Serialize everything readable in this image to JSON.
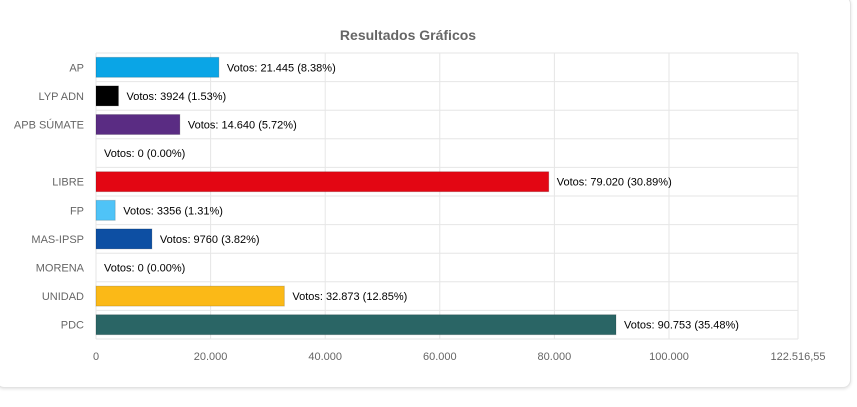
{
  "chart_data": {
    "type": "bar",
    "orientation": "horizontal",
    "title": "Resultados Gráficos",
    "xlabel": "",
    "ylabel": "",
    "xlim": [
      0,
      122516.55
    ],
    "grid": true,
    "categories": [
      "AP",
      "LYP ADN",
      "APB SÚMATE",
      "",
      "LIBRE",
      "FP",
      "MAS-IPSP",
      "MORENA",
      "UNIDAD",
      "PDC"
    ],
    "values": [
      21445,
      3924,
      14640,
      0,
      79020,
      3356,
      9760,
      0,
      32873,
      90753
    ],
    "colors": [
      "#0aa5e6",
      "#000000",
      "#5a2c83",
      "#cccccc",
      "#e30613",
      "#4fc3f7",
      "#0d4fa3",
      "#8b1a1a",
      "#fbb917",
      "#2a6565"
    ],
    "data_labels": [
      "Votos: 21.445 (8.38%)",
      "Votos: 3924 (1.53%)",
      "Votos: 14.640 (5.72%)",
      "Votos: 0 (0.00%)",
      "Votos: 79.020 (30.89%)",
      "Votos: 3356 (1.31%)",
      "Votos: 9760 (3.82%)",
      "Votos: 0 (0.00%)",
      "Votos: 32.873 (12.85%)",
      "Votos: 90.753 (35.48%)"
    ],
    "x_ticks": [
      {
        "value": 0,
        "label": "0"
      },
      {
        "value": 20000,
        "label": "20.000"
      },
      {
        "value": 40000,
        "label": "40.000"
      },
      {
        "value": 60000,
        "label": "60.000"
      },
      {
        "value": 80000,
        "label": "80.000"
      },
      {
        "value": 100000,
        "label": "100.000"
      },
      {
        "value": 122516.55,
        "label": "122.516,55"
      }
    ]
  }
}
